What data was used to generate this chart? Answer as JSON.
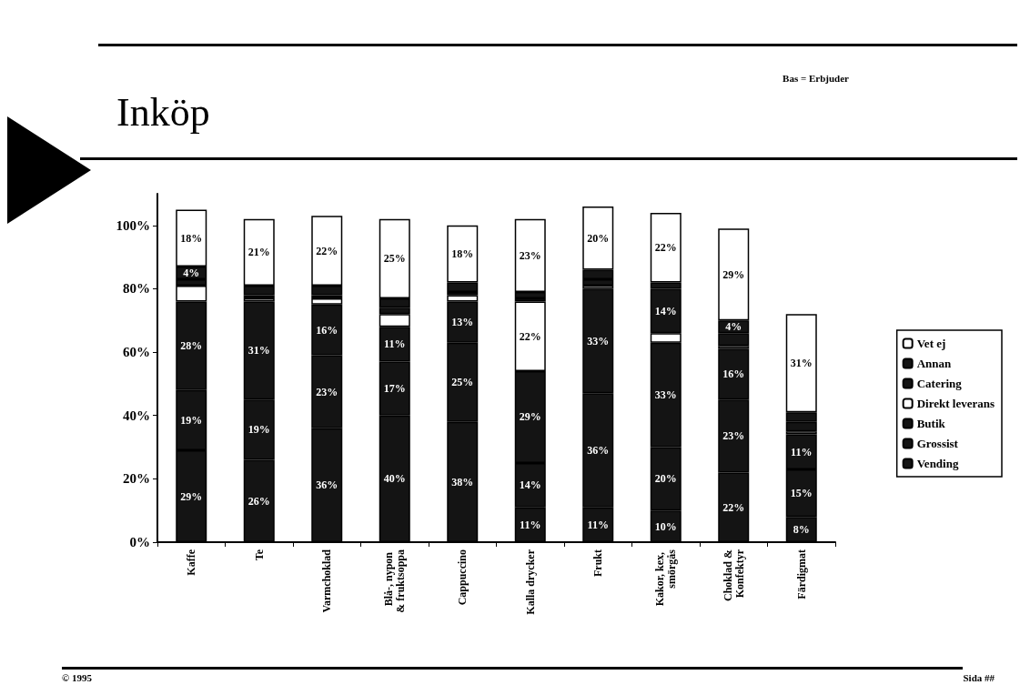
{
  "chart_data": {
    "type": "bar",
    "title": "Inköp",
    "stacked": true,
    "annotations": [
      "Bas = Erbjuder",
      "© 1995",
      "Sida ##"
    ],
    "categories": [
      "Kaffe",
      "Te",
      "Varmchoklad",
      "Blå-, nypon & fruktsoppa",
      "Cappuccino",
      "Kalla drycker",
      "Frukt",
      "Kakor, kex, smörgås",
      "Choklad &Konfektyr",
      "Färdigmat"
    ],
    "series": [
      {
        "name": "Vending",
        "color": "#141414",
        "values": [
          29,
          26,
          36,
          40,
          38,
          11,
          11,
          10,
          22,
          8
        ],
        "value_labels": [
          "29%",
          "26%",
          "36%",
          "40%",
          "38%",
          "11%",
          "11%",
          "10%",
          "22%",
          "8%"
        ]
      },
      {
        "name": "Grossist",
        "color": "#141414",
        "values": [
          19,
          19,
          23,
          17,
          25,
          14,
          36,
          20,
          23,
          15
        ],
        "value_labels": [
          "19%",
          "19%",
          "23%",
          "17%",
          "25%",
          "14%",
          "36%",
          "20%",
          "23%",
          "15%"
        ]
      },
      {
        "name": "Butik",
        "color": "#141414",
        "values": [
          28,
          31,
          16,
          11,
          13,
          29,
          33,
          33,
          16,
          11
        ],
        "value_labels": [
          "28%",
          "31%",
          "16%",
          "11%",
          "13%",
          "29%",
          "33%",
          "33%",
          "16%",
          "11%"
        ]
      },
      {
        "name": "Direkt leverans",
        "color": "#ffffff",
        "values": [
          5,
          1,
          2,
          4,
          2,
          22,
          1,
          3,
          1,
          1
        ],
        "value_labels": [
          null,
          null,
          null,
          null,
          null,
          "22%",
          null,
          null,
          null,
          null
        ]
      },
      {
        "name": "Catering",
        "color": "#141414",
        "values": [
          2,
          1,
          1,
          2,
          1,
          1,
          2,
          14,
          4,
          3
        ],
        "value_labels": [
          null,
          null,
          null,
          null,
          null,
          null,
          null,
          "14%",
          null,
          null
        ]
      },
      {
        "name": "Annan",
        "color": "#141414",
        "values": [
          4,
          3,
          3,
          3,
          3,
          2,
          3,
          2,
          4,
          3
        ],
        "value_labels": [
          "4%",
          null,
          null,
          null,
          null,
          null,
          null,
          null,
          "4%",
          null
        ]
      },
      {
        "name": "Vet ej",
        "color": "#ffffff",
        "values": [
          18,
          21,
          22,
          25,
          18,
          23,
          20,
          22,
          29,
          31
        ],
        "value_labels": [
          "18%",
          "21%",
          "22%",
          "25%",
          "18%",
          "23%",
          "20%",
          "22%",
          "29%",
          "31%"
        ]
      }
    ],
    "ylim": [
      0,
      110
    ],
    "yticks": [
      {
        "value": 0,
        "label": "0%"
      },
      {
        "value": 20,
        "label": "20%"
      },
      {
        "value": 40,
        "label": "40%"
      },
      {
        "value": 60,
        "label": "60%"
      },
      {
        "value": 80,
        "label": "80%"
      },
      {
        "value": 100,
        "label": "100%"
      }
    ],
    "legend": "right",
    "grid": false
  }
}
